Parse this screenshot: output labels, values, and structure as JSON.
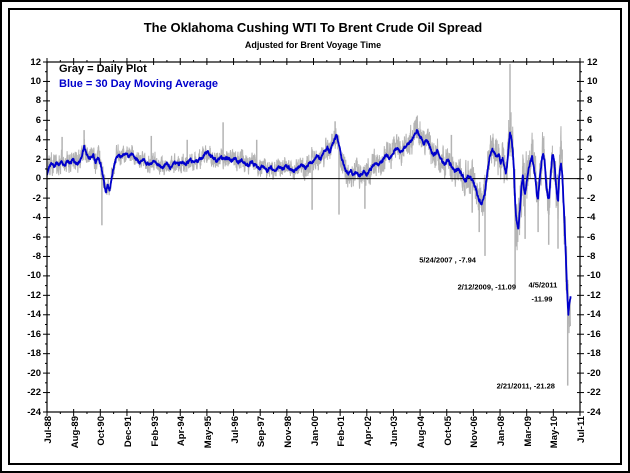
{
  "chart_data": {
    "type": "line",
    "title": "The Oklahoma Cushing WTI To Brent Crude Oil Spread",
    "subtitle": "Adjusted for Brent Voyage Time",
    "ylim": [
      -24,
      12
    ],
    "y_major_step": 2,
    "y_minor_step": 1,
    "y_tick_values": [
      12,
      10,
      8,
      6,
      4,
      2,
      0,
      -2,
      -4,
      -6,
      -8,
      -10,
      -12,
      -14,
      -16,
      -18,
      -20,
      -22,
      -24
    ],
    "x_years_lim": [
      1988.5,
      2011.5
    ],
    "x_tick_labels": [
      "Jul-88",
      "Aug-89",
      "Oct-90",
      "Dec-91",
      "Feb-93",
      "Apr-94",
      "May-95",
      "Jul-96",
      "Sep-97",
      "Nov-98",
      "Jan-00",
      "Feb-01",
      "Apr-02",
      "Jun-03",
      "Aug-04",
      "Oct-05",
      "Nov-06",
      "Jan-08",
      "Mar-09",
      "May-10",
      "Jul-11"
    ],
    "grid": false,
    "zero_line": true,
    "legend": {
      "position": "top-left",
      "entries": [
        {
          "label": "Gray = Daily Plot",
          "color": "#000000"
        },
        {
          "label": "Blue = 30 Day Moving Average",
          "color": "#0000CC"
        }
      ]
    },
    "series": [
      {
        "name": "Daily Plot",
        "color": "#b4b4b4",
        "derived_from": "30 Day Moving Average"
      },
      {
        "name": "30 Day Moving Average",
        "color": "#0000CC",
        "points": [
          [
            1988.5,
            0.3
          ],
          [
            1988.58,
            1.3
          ],
          [
            1988.7,
            1.6
          ],
          [
            1988.8,
            1.2
          ],
          [
            1988.9,
            1.6
          ],
          [
            1989.0,
            1.3
          ],
          [
            1989.1,
            1.8
          ],
          [
            1989.25,
            1.4
          ],
          [
            1989.4,
            1.9
          ],
          [
            1989.5,
            1.5
          ],
          [
            1989.6,
            2.0
          ],
          [
            1989.75,
            1.5
          ],
          [
            1989.9,
            1.8
          ],
          [
            1990.0,
            2.2
          ],
          [
            1990.1,
            3.3
          ],
          [
            1990.2,
            2.5
          ],
          [
            1990.35,
            2.1
          ],
          [
            1990.5,
            2.4
          ],
          [
            1990.6,
            1.6
          ],
          [
            1990.7,
            2.3
          ],
          [
            1990.8,
            1.7
          ],
          [
            1990.9,
            0.5
          ],
          [
            1990.98,
            -0.7
          ],
          [
            1991.05,
            -1.4
          ],
          [
            1991.12,
            -0.6
          ],
          [
            1991.2,
            -1.3
          ],
          [
            1991.3,
            0.2
          ],
          [
            1991.4,
            1.4
          ],
          [
            1991.5,
            2.2
          ],
          [
            1991.6,
            2.6
          ],
          [
            1991.7,
            2.2
          ],
          [
            1991.85,
            2.6
          ],
          [
            1992.0,
            2.3
          ],
          [
            1992.15,
            2.6
          ],
          [
            1992.3,
            2.1
          ],
          [
            1992.5,
            1.7
          ],
          [
            1992.65,
            2.0
          ],
          [
            1992.8,
            1.6
          ],
          [
            1993.0,
            1.5
          ],
          [
            1993.15,
            1.8
          ],
          [
            1993.3,
            1.4
          ],
          [
            1993.5,
            1.2
          ],
          [
            1993.65,
            1.6
          ],
          [
            1993.8,
            1.1
          ],
          [
            1994.0,
            1.6
          ],
          [
            1994.2,
            1.4
          ],
          [
            1994.35,
            1.8
          ],
          [
            1994.5,
            1.5
          ],
          [
            1994.7,
            1.9
          ],
          [
            1994.85,
            1.6
          ],
          [
            1995.0,
            1.8
          ],
          [
            1995.15,
            2.1
          ],
          [
            1995.3,
            2.5
          ],
          [
            1995.45,
            2.8
          ],
          [
            1995.55,
            2.4
          ],
          [
            1995.7,
            2.1
          ],
          [
            1995.85,
            1.8
          ],
          [
            1996.0,
            2.3
          ],
          [
            1996.15,
            1.9
          ],
          [
            1996.3,
            2.2
          ],
          [
            1996.45,
            1.8
          ],
          [
            1996.6,
            2.1
          ],
          [
            1996.75,
            1.7
          ],
          [
            1996.9,
            2.0
          ],
          [
            1997.05,
            1.6
          ],
          [
            1997.2,
            1.4
          ],
          [
            1997.35,
            1.7
          ],
          [
            1997.5,
            1.3
          ],
          [
            1997.65,
            1.0
          ],
          [
            1997.8,
            1.3
          ],
          [
            1998.0,
            0.9
          ],
          [
            1998.15,
            1.2
          ],
          [
            1998.3,
            0.8
          ],
          [
            1998.5,
            1.2
          ],
          [
            1998.65,
            0.9
          ],
          [
            1998.8,
            1.3
          ],
          [
            1999.0,
            1.0
          ],
          [
            1999.15,
            0.7
          ],
          [
            1999.3,
            1.1
          ],
          [
            1999.5,
            1.4
          ],
          [
            1999.65,
            1.1
          ],
          [
            1999.8,
            1.5
          ],
          [
            2000.0,
            1.9
          ],
          [
            2000.15,
            2.4
          ],
          [
            2000.3,
            2.0
          ],
          [
            2000.45,
            2.7
          ],
          [
            2000.6,
            3.2
          ],
          [
            2000.7,
            2.7
          ],
          [
            2000.8,
            3.4
          ],
          [
            2000.9,
            4.0
          ],
          [
            2001.0,
            4.4
          ],
          [
            2001.1,
            3.5
          ],
          [
            2001.2,
            2.3
          ],
          [
            2001.35,
            1.1
          ],
          [
            2001.5,
            0.4
          ],
          [
            2001.6,
            0.9
          ],
          [
            2001.7,
            0.3
          ],
          [
            2001.85,
            0.7
          ],
          [
            2002.0,
            0.3
          ],
          [
            2002.15,
            0.7
          ],
          [
            2002.3,
            0.4
          ],
          [
            2002.5,
            1.1
          ],
          [
            2002.65,
            1.7
          ],
          [
            2002.8,
            1.4
          ],
          [
            2003.0,
            1.9
          ],
          [
            2003.15,
            2.5
          ],
          [
            2003.3,
            2.1
          ],
          [
            2003.45,
            2.8
          ],
          [
            2003.6,
            3.2
          ],
          [
            2003.75,
            2.7
          ],
          [
            2003.9,
            3.1
          ],
          [
            2004.1,
            3.6
          ],
          [
            2004.3,
            4.2
          ],
          [
            2004.45,
            5.0
          ],
          [
            2004.6,
            4.3
          ],
          [
            2004.75,
            3.6
          ],
          [
            2004.9,
            4.0
          ],
          [
            2005.05,
            3.1
          ],
          [
            2005.2,
            2.4
          ],
          [
            2005.35,
            2.8
          ],
          [
            2005.5,
            2.0
          ],
          [
            2005.65,
            1.5
          ],
          [
            2005.8,
            1.9
          ],
          [
            2005.95,
            1.3
          ],
          [
            2006.1,
            0.7
          ],
          [
            2006.25,
            1.1
          ],
          [
            2006.4,
            0.4
          ],
          [
            2006.55,
            -0.3
          ],
          [
            2006.7,
            0.4
          ],
          [
            2006.85,
            -0.1
          ],
          [
            2007.0,
            -0.9
          ],
          [
            2007.1,
            -1.9
          ],
          [
            2007.25,
            -2.7
          ],
          [
            2007.4,
            -1.4
          ],
          [
            2007.5,
            0.6
          ],
          [
            2007.6,
            2.3
          ],
          [
            2007.75,
            3.0
          ],
          [
            2007.9,
            2.2
          ],
          [
            2008.0,
            2.5
          ],
          [
            2008.08,
            1.6
          ],
          [
            2008.16,
            2.1
          ],
          [
            2008.24,
            1.2
          ],
          [
            2008.3,
            0.5
          ],
          [
            2008.36,
            1.5
          ],
          [
            2008.42,
            3.2
          ],
          [
            2008.48,
            4.8
          ],
          [
            2008.54,
            4.3
          ],
          [
            2008.6,
            2.8
          ],
          [
            2008.65,
            0.8
          ],
          [
            2008.7,
            -2.2
          ],
          [
            2008.76,
            -4.4
          ],
          [
            2008.84,
            -5.2
          ],
          [
            2008.9,
            -3.4
          ],
          [
            2008.97,
            -1.0
          ],
          [
            2009.03,
            0.3
          ],
          [
            2009.08,
            -0.9
          ],
          [
            2009.13,
            -1.7
          ],
          [
            2009.2,
            -0.2
          ],
          [
            2009.28,
            1.0
          ],
          [
            2009.36,
            1.8
          ],
          [
            2009.43,
            2.2
          ],
          [
            2009.5,
            1.4
          ],
          [
            2009.57,
            0.3
          ],
          [
            2009.63,
            -1.4
          ],
          [
            2009.69,
            -2.1
          ],
          [
            2009.78,
            0.3
          ],
          [
            2009.85,
            1.8
          ],
          [
            2009.91,
            2.7
          ],
          [
            2009.97,
            1.9
          ],
          [
            2010.04,
            -0.4
          ],
          [
            2010.11,
            -1.9
          ],
          [
            2010.17,
            -2.1
          ],
          [
            2010.24,
            0.5
          ],
          [
            2010.3,
            2.2
          ],
          [
            2010.34,
            2.5
          ],
          [
            2010.4,
            1.5
          ],
          [
            2010.46,
            -0.6
          ],
          [
            2010.52,
            -2.0
          ],
          [
            2010.56,
            -2.2
          ],
          [
            2010.6,
            0.0
          ],
          [
            2010.64,
            1.0
          ],
          [
            2010.68,
            1.5
          ],
          [
            2010.72,
            0.8
          ],
          [
            2010.76,
            -0.8
          ],
          [
            2010.8,
            -2.8
          ],
          [
            2010.84,
            -5.0
          ],
          [
            2010.88,
            -7.5
          ],
          [
            2010.92,
            -10.0
          ],
          [
            2010.96,
            -12.5
          ],
          [
            2011.0,
            -13.9
          ],
          [
            2011.04,
            -13.0
          ],
          [
            2011.09,
            -12.1
          ]
        ]
      }
    ],
    "daily_spikes": [
      [
        1989.15,
        4.3
      ],
      [
        1990.1,
        5.0
      ],
      [
        1990.87,
        -4.8
      ],
      [
        1993.0,
        4.4
      ],
      [
        1994.55,
        4.0
      ],
      [
        1996.1,
        5.8
      ],
      [
        1997.55,
        4.0
      ],
      [
        1999.94,
        -3.2
      ],
      [
        2000.93,
        5.9
      ],
      [
        2001.1,
        -3.7
      ],
      [
        2002.22,
        -3.1
      ],
      [
        2004.45,
        6.3
      ],
      [
        2005.95,
        4.5
      ],
      [
        2006.85,
        -3.5
      ],
      [
        2007.15,
        -5.5
      ],
      [
        2007.4,
        -7.94
      ],
      [
        2008.48,
        11.8
      ],
      [
        2008.7,
        -11.09
      ],
      [
        2009.13,
        -6.2
      ],
      [
        2009.69,
        -5.5
      ],
      [
        2010.15,
        -6.8
      ],
      [
        2010.55,
        -7.2
      ],
      [
        2010.97,
        -21.28
      ]
    ],
    "daily_noise": {
      "seed": 20110405,
      "ar": 0.55,
      "gain": 2.2,
      "step_years": 0.006,
      "amplitude_eras": [
        [
          1988.5,
          0.85
        ],
        [
          1991.5,
          0.7
        ],
        [
          1999.5,
          1.0
        ],
        [
          2003.0,
          1.1
        ],
        [
          2006.5,
          1.4
        ],
        [
          2008.35,
          2.3
        ],
        [
          2009.3,
          1.7
        ],
        [
          2010.6,
          2.6
        ]
      ]
    },
    "annotations": [
      {
        "text": "5/24/2007 , -7.94",
        "anchor": "right",
        "x_year": 2007.01,
        "y_value": -8.4
      },
      {
        "text": "2/12/2009, -11.09",
        "anchor": "right",
        "x_year": 2008.74,
        "y_value": -11.1
      },
      {
        "text": "4/5/2011",
        "anchor": "center",
        "x_year": 2009.9,
        "y_value": -10.9
      },
      {
        "text": "-11.99",
        "anchor": "center",
        "x_year": 2009.86,
        "y_value": -12.4
      },
      {
        "text": "2/21/2011, -21.28",
        "anchor": "right",
        "x_year": 2010.42,
        "y_value": -21.3
      }
    ]
  }
}
